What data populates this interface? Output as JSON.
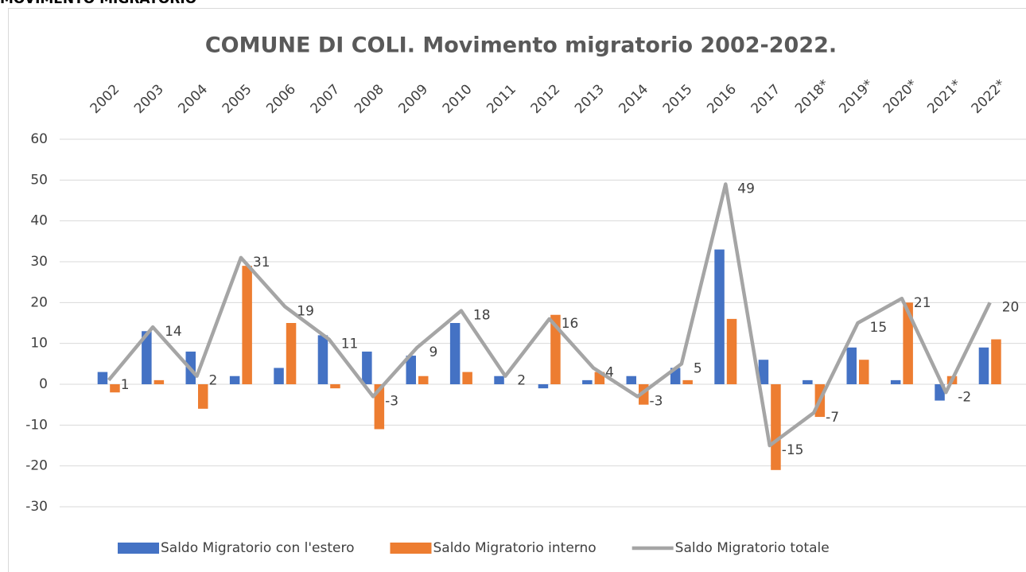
{
  "header": "MOVIMENTO MIGRATORIO",
  "chart_data": {
    "type": "bar-line",
    "title": "COMUNE DI COLI. Movimento migratorio 2002-2022.",
    "categories": [
      "2002",
      "2003",
      "2004",
      "2005",
      "2006",
      "2007",
      "2008",
      "2009",
      "2010",
      "2011",
      "2012",
      "2013",
      "2014",
      "2015",
      "2016",
      "2017",
      "2018*",
      "2019*",
      "2020*",
      "2021*",
      "2022*"
    ],
    "series": [
      {
        "name": "Saldo Migratorio con l'estero",
        "type": "bar",
        "color": "#4472c4",
        "values": [
          3,
          13,
          8,
          2,
          4,
          12,
          8,
          7,
          15,
          2,
          -1,
          1,
          2,
          4,
          33,
          6,
          1,
          9,
          1,
          -4,
          9
        ]
      },
      {
        "name": "Saldo Migratorio interno",
        "type": "bar",
        "color": "#ed7d31",
        "values": [
          -2,
          1,
          -6,
          29,
          15,
          -1,
          -11,
          2,
          3,
          0,
          17,
          3,
          -5,
          1,
          16,
          -21,
          -8,
          6,
          20,
          2,
          11
        ]
      },
      {
        "name": "Saldo Migratorio totale",
        "type": "line",
        "color": "#a5a5a5",
        "values": [
          1,
          14,
          2,
          31,
          19,
          11,
          -3,
          9,
          18,
          2,
          16,
          4,
          -3,
          5,
          49,
          -15,
          -7,
          15,
          21,
          -2,
          20
        ]
      }
    ],
    "ylim": [
      -30,
      60
    ],
    "yticks": [
      -30,
      -20,
      -10,
      0,
      10,
      20,
      30,
      40,
      50,
      60
    ],
    "grid": true,
    "legend": "bottom"
  }
}
